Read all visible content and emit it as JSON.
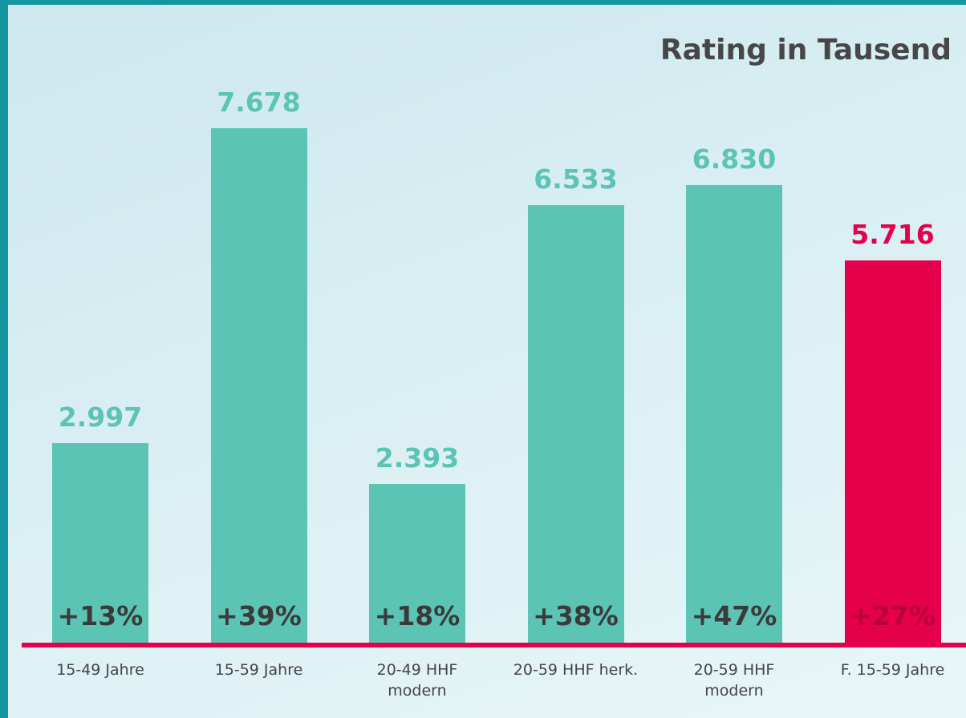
{
  "chart_data": {
    "type": "bar",
    "title": "Rating in Tausend",
    "categories": [
      "15-49 Jahre",
      "15-59 Jahre",
      "20-49 HHF\nmodern",
      "20-59 HHF herk.",
      "20-59 HHF\nmodern",
      "F. 15-59 Jahre"
    ],
    "values": [
      2.997,
      7.678,
      2.393,
      6.533,
      6.83,
      5.716
    ],
    "value_labels": [
      "2.997",
      "7.678",
      "2.393",
      "6.533",
      "6.830",
      "5.716"
    ],
    "change_labels": [
      "+13%",
      "+39%",
      "+18%",
      "+38%",
      "+47%",
      "+27%"
    ],
    "colors": [
      "#5bc4b4",
      "#5bc4b4",
      "#5bc4b4",
      "#5bc4b4",
      "#5bc4b4",
      "#e4004b"
    ],
    "ylim": [
      0,
      9.5
    ]
  }
}
